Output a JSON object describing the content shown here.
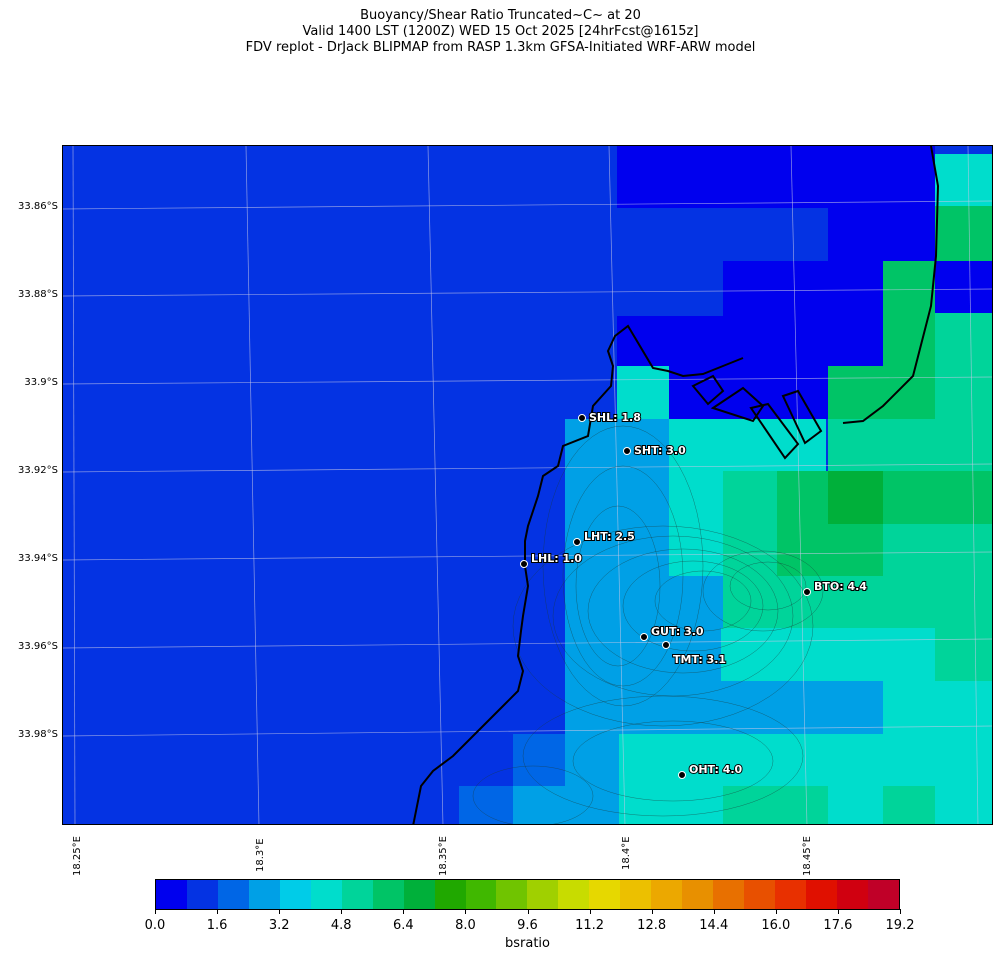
{
  "header": {
    "line1": "Buoyancy/Shear Ratio Truncated~C~    at 20",
    "line2": "Valid 1400 LST (1200Z) WED 15 Oct 2025 [24hrFcst@1615z]",
    "line3": "FDV replot - DrJack BLIPMAP from RASP 1.3km GFSA-Initiated WRF-ARW model"
  },
  "lat_labels": [
    "33.86°S",
    "33.88°S",
    "33.9°S",
    "33.92°S",
    "33.94°S",
    "33.96°S",
    "33.98°S"
  ],
  "lon_labels": [
    "18.25°E",
    "18.3°E",
    "18.35°E",
    "18.4°E",
    "18.45°E"
  ],
  "stations": [
    {
      "label": "SHL: 1.8",
      "code": "SHL",
      "value": 1.8
    },
    {
      "label": "SHT: 3.0",
      "code": "SHT",
      "value": 3.0
    },
    {
      "label": "LHT: 2.5",
      "code": "LHT",
      "value": 2.5
    },
    {
      "label": "LHL: 1.0",
      "code": "LHL",
      "value": 1.0
    },
    {
      "label": "BTO: 4.4",
      "code": "BTO",
      "value": 4.4
    },
    {
      "label": "GUT: 3.0",
      "code": "GUT",
      "value": 3.0
    },
    {
      "label": "TMT: 3.1",
      "code": "TMT",
      "value": 3.1
    },
    {
      "label": "OHT: 4.0",
      "code": "OHT",
      "value": 4.0
    }
  ],
  "colorbar": {
    "label": "bsratio",
    "ticks": [
      "0.0",
      "1.6",
      "3.2",
      "4.8",
      "6.4",
      "8.0",
      "9.6",
      "11.2",
      "12.8",
      "14.4",
      "16.0",
      "17.6",
      "19.2"
    ],
    "colors": [
      "#0000ee",
      "#0433e3",
      "#0066e6",
      "#00a0e6",
      "#00cce8",
      "#00ddcc",
      "#00d49a",
      "#00c466",
      "#00b03a",
      "#20a800",
      "#40b800",
      "#70c400",
      "#a0d000",
      "#c8dc00",
      "#e6d800",
      "#ecc000",
      "#eca800",
      "#e89000",
      "#e87000",
      "#e85000",
      "#e83000",
      "#e01000",
      "#d00010",
      "#c00028"
    ]
  },
  "field_colors": {
    "low": "#0000ee",
    "ocean": "#0433e3",
    "l2": "#0066e6",
    "l3": "#00a0e6",
    "l4": "#00ddcc",
    "l5": "#00d49a",
    "l6": "#00c466",
    "l7": "#00b03a"
  }
}
